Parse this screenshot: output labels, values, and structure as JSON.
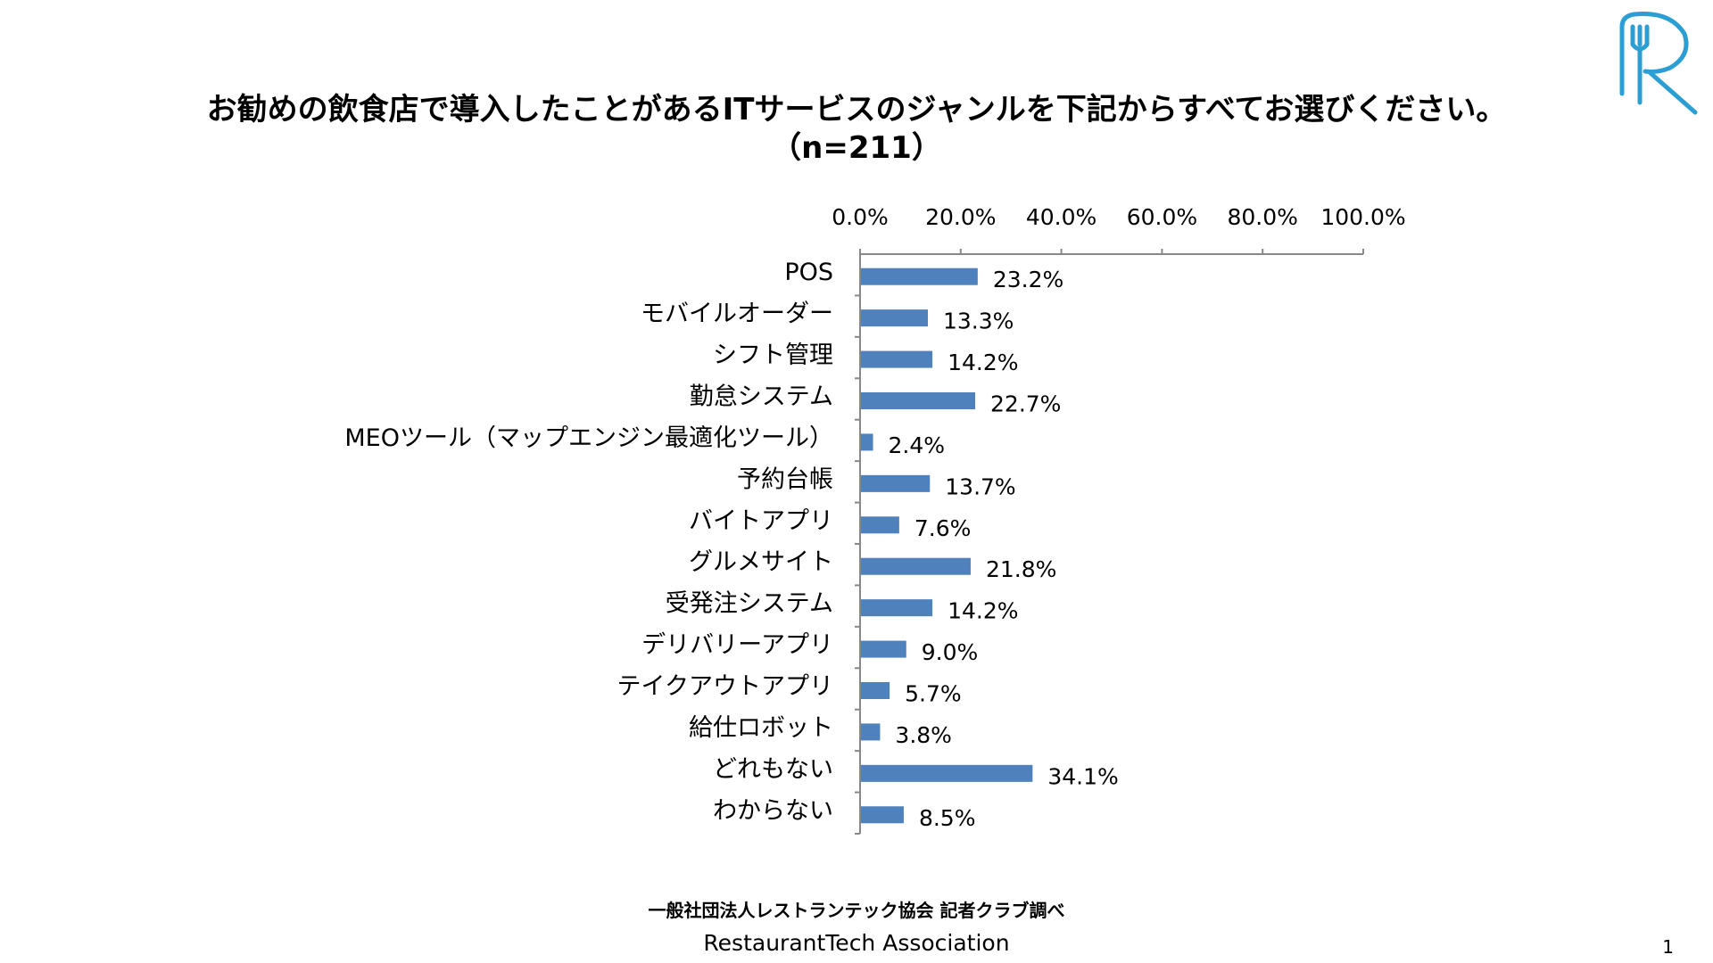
{
  "title": {
    "line1": "お勧めの飲食店で導入したことがあるITサービスのジャンルを下記からすべてお選びください。",
    "line2": "（n=211）"
  },
  "chart_data": {
    "type": "bar",
    "orientation": "horizontal",
    "categories": [
      "POS",
      "モバイルオーダー",
      "シフト管理",
      "勤怠システム",
      "MEOツール（マップエンジン最適化ツール）",
      "予約台帳",
      "バイトアプリ",
      "グルメサイト",
      "受発注システム",
      "デリバリーアプリ",
      "テイクアウトアプリ",
      "給仕ロボット",
      "どれもない",
      "わからない"
    ],
    "values": [
      23.2,
      13.3,
      14.2,
      22.7,
      2.4,
      13.7,
      7.6,
      21.8,
      14.2,
      9.0,
      5.7,
      3.8,
      34.1,
      8.5
    ],
    "value_labels": [
      "23.2%",
      "13.3%",
      "14.2%",
      "22.7%",
      "2.4%",
      "13.7%",
      "7.6%",
      "21.8%",
      "14.2%",
      "9.0%",
      "5.7%",
      "3.8%",
      "34.1%",
      "8.5%"
    ],
    "xlim": [
      0,
      100
    ],
    "ticks": [
      0,
      20,
      40,
      60,
      80,
      100
    ],
    "tick_labels": [
      "0.0%",
      "20.0%",
      "40.0%",
      "60.0%",
      "80.0%",
      "100.0%"
    ],
    "axis_position": "top",
    "grid": false,
    "legend": "none",
    "bar_color": "#4f81bd"
  },
  "footer": {
    "source": "一般社団法人レストランテック協会 記者クラブ調べ",
    "org": "RestaurantTech Association",
    "page": "1"
  },
  "logo": {
    "icon": "restaurant-r-fork-knife-logo",
    "color": "#2b9fd3"
  }
}
